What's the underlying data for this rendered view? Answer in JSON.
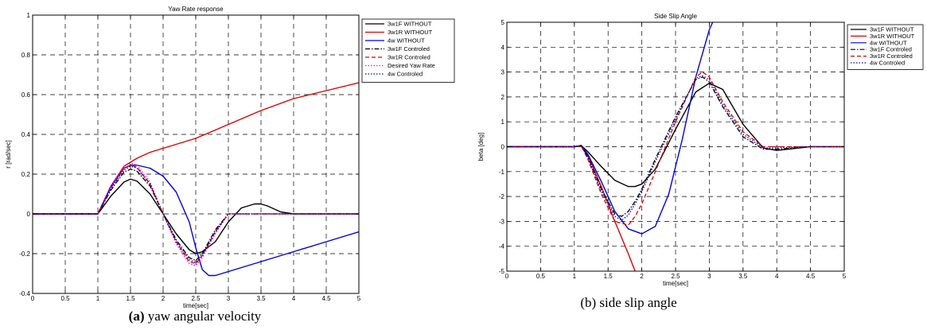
{
  "chart_data": [
    {
      "type": "line",
      "title": "Yaw Rate response",
      "xlabel": "time[sec]",
      "ylabel": "r [rad/sec]",
      "xlim": [
        0,
        5
      ],
      "ylim": [
        -0.4,
        1
      ],
      "xticks": [
        "0",
        "0.5",
        "1",
        "1.5",
        "2",
        "2.5",
        "3",
        "3.5",
        "4",
        "4.5",
        "5"
      ],
      "yticks": [
        "-0.4",
        "-0.2",
        "0",
        "0.2",
        "0.4",
        "0.6",
        "0.8",
        "1"
      ],
      "grid": true,
      "legend_position": "top-right",
      "caption_bold": "(a)",
      "caption": " yaw angular velocity",
      "series": [
        {
          "name": "3w1F WITHOUT",
          "color": "#000000",
          "dash": "solid",
          "x": [
            0,
            1,
            1.2,
            1.4,
            1.5,
            1.6,
            1.8,
            2.0,
            2.2,
            2.4,
            2.5,
            2.6,
            2.8,
            3.0,
            3.2,
            3.4,
            3.5,
            3.6,
            3.8,
            4.0,
            4.5,
            5
          ],
          "y": [
            0,
            0,
            0.09,
            0.16,
            0.175,
            0.165,
            0.1,
            0.0,
            -0.1,
            -0.18,
            -0.2,
            -0.19,
            -0.14,
            -0.04,
            0.03,
            0.05,
            0.05,
            0.04,
            0.01,
            0.0,
            0.0,
            0.0
          ]
        },
        {
          "name": "3w1R WITHOUT",
          "color": "#e00000",
          "dash": "solid",
          "x": [
            0,
            1,
            1.2,
            1.4,
            1.5,
            1.6,
            1.8,
            2.0,
            2.5,
            3.0,
            3.5,
            4.0,
            4.5,
            5
          ],
          "y": [
            0,
            0,
            0.14,
            0.24,
            0.26,
            0.28,
            0.31,
            0.33,
            0.38,
            0.45,
            0.52,
            0.58,
            0.62,
            0.66
          ]
        },
        {
          "name": "4w WITHOUT",
          "color": "#0000e0",
          "dash": "solid",
          "x": [
            0,
            1,
            1.2,
            1.4,
            1.5,
            1.6,
            1.8,
            2.0,
            2.2,
            2.4,
            2.5,
            2.6,
            2.7,
            2.8,
            3.0,
            3.5,
            4.0,
            4.5,
            5
          ],
          "y": [
            0,
            0,
            0.14,
            0.23,
            0.245,
            0.245,
            0.23,
            0.19,
            0.11,
            -0.04,
            -0.17,
            -0.28,
            -0.31,
            -0.31,
            -0.29,
            -0.24,
            -0.19,
            -0.14,
            -0.09
          ]
        },
        {
          "name": "3w1F Controled",
          "color": "#000000",
          "dash": "dashdot",
          "x": [
            0,
            1,
            1.2,
            1.4,
            1.5,
            1.6,
            1.8,
            2.0,
            2.2,
            2.4,
            2.5,
            2.6,
            2.8,
            3.0,
            3.2,
            3.5,
            4.0,
            5
          ],
          "y": [
            0,
            0,
            0.12,
            0.21,
            0.225,
            0.215,
            0.14,
            0.0,
            -0.13,
            -0.22,
            -0.235,
            -0.2,
            -0.08,
            0.0,
            0.0,
            0.0,
            0.0,
            0.0
          ]
        },
        {
          "name": "3w1R Controled",
          "color": "#e00000",
          "dash": "dashed",
          "x": [
            0,
            1,
            1.2,
            1.4,
            1.5,
            1.6,
            1.8,
            2.0,
            2.2,
            2.4,
            2.5,
            2.6,
            2.8,
            3.0,
            3.2,
            3.5,
            4.0,
            5
          ],
          "y": [
            0,
            0,
            0.13,
            0.23,
            0.245,
            0.235,
            0.15,
            0.0,
            -0.14,
            -0.24,
            -0.25,
            -0.21,
            -0.09,
            0.0,
            0.0,
            0.0,
            0.0,
            0.0
          ]
        },
        {
          "name": "Desired Yaw Rate",
          "color": "#ff00ff",
          "dash": "dotted",
          "x": [
            0,
            1,
            1.2,
            1.4,
            1.5,
            1.6,
            1.8,
            2.0,
            2.2,
            2.4,
            2.5,
            2.6,
            2.8,
            3.0,
            3.2,
            3.5,
            4.0,
            5
          ],
          "y": [
            0,
            0,
            0.14,
            0.24,
            0.255,
            0.245,
            0.16,
            0.0,
            -0.15,
            -0.25,
            -0.26,
            -0.22,
            -0.1,
            0.0,
            0.0,
            0.0,
            0.0,
            0.0
          ]
        },
        {
          "name": "4w Controled",
          "color": "#0000c0",
          "dash": "dotted",
          "x": [
            0,
            1,
            1.2,
            1.4,
            1.5,
            1.6,
            1.8,
            2.0,
            2.2,
            2.4,
            2.5,
            2.6,
            2.8,
            3.0,
            3.2,
            3.5,
            4.0,
            5
          ],
          "y": [
            0,
            0,
            0.13,
            0.22,
            0.24,
            0.23,
            0.15,
            0.0,
            -0.14,
            -0.23,
            -0.245,
            -0.21,
            -0.09,
            0.0,
            0.0,
            0.0,
            0.0,
            0.0
          ]
        }
      ]
    },
    {
      "type": "line",
      "title": "Side Slip Angle",
      "xlabel": "time[sec]",
      "ylabel": "beta [deg]",
      "xlim": [
        0,
        5
      ],
      "ylim": [
        -5,
        5
      ],
      "xticks": [
        "0",
        "0.5",
        "1",
        "1.5",
        "2",
        "2.5",
        "3",
        "3.5",
        "4",
        "4.5",
        "5"
      ],
      "yticks": [
        "-5",
        "-4",
        "-3",
        "-2",
        "-1",
        "0",
        "1",
        "2",
        "3",
        "4",
        "5"
      ],
      "grid": true,
      "legend_position": "top-right",
      "caption": "(b) side slip angle",
      "series": [
        {
          "name": "3w1F WITHOUT",
          "color": "#000000",
          "dash": "solid",
          "x": [
            0,
            1,
            1.1,
            1.2,
            1.4,
            1.6,
            1.8,
            1.9,
            2.0,
            2.2,
            2.5,
            2.8,
            3.0,
            3.2,
            3.5,
            3.8,
            4.0,
            4.5,
            5
          ],
          "y": [
            0,
            0,
            0.05,
            -0.2,
            -0.8,
            -1.35,
            -1.6,
            -1.6,
            -1.5,
            -0.9,
            0.7,
            2.2,
            2.55,
            2.3,
            0.9,
            -0.05,
            -0.15,
            0.0,
            0.0
          ]
        },
        {
          "name": "3w1R WITHOUT",
          "color": "#e00000",
          "dash": "solid",
          "x": [
            0,
            1,
            1.1,
            1.2,
            1.4,
            1.6,
            1.8,
            1.9
          ],
          "y": [
            0,
            0,
            0.03,
            -0.35,
            -1.6,
            -3.0,
            -4.3,
            -5.0
          ]
        },
        {
          "name": "4w WITHOUT",
          "color": "#0000e0",
          "dash": "solid",
          "x": [
            0,
            1,
            1.1,
            1.2,
            1.4,
            1.6,
            1.8,
            2.0,
            2.2,
            2.4,
            2.6,
            2.8,
            3.0,
            3.05
          ],
          "y": [
            0,
            0,
            0.05,
            -0.3,
            -1.4,
            -2.6,
            -3.3,
            -3.5,
            -3.2,
            -1.9,
            0.3,
            2.8,
            4.7,
            5.0
          ]
        },
        {
          "name": "3w1F Controled",
          "color": "#000000",
          "dash": "dashdot",
          "x": [
            0,
            1,
            1.1,
            1.2,
            1.4,
            1.6,
            1.7,
            1.8,
            1.9,
            2.0,
            2.2,
            2.5,
            2.8,
            2.9,
            3.0,
            3.2,
            3.5,
            3.8,
            4.0,
            4.5,
            5
          ],
          "y": [
            0,
            0,
            0.05,
            -0.4,
            -1.7,
            -2.7,
            -2.8,
            -2.6,
            -2.2,
            -1.7,
            -0.5,
            1.2,
            2.7,
            2.8,
            2.6,
            1.6,
            0.4,
            -0.1,
            -0.1,
            0.0,
            0.0
          ]
        },
        {
          "name": "3w1R Controled",
          "color": "#e00000",
          "dash": "dashed",
          "x": [
            0,
            1,
            1.1,
            1.2,
            1.4,
            1.6,
            1.8,
            1.9,
            2.0,
            2.2,
            2.5,
            2.8,
            2.9,
            3.0,
            3.2,
            3.5,
            3.8,
            4.0,
            4.5,
            5
          ],
          "y": [
            0,
            0,
            0.05,
            -0.5,
            -1.9,
            -3.0,
            -3.15,
            -2.8,
            -2.3,
            -1.0,
            1.0,
            2.8,
            3.0,
            2.8,
            1.8,
            0.6,
            0.0,
            0.0,
            0.0,
            0.0
          ]
        },
        {
          "name": "4w Controled",
          "color": "#0000c0",
          "dash": "dotted",
          "x": [
            0,
            1,
            1.1,
            1.2,
            1.4,
            1.6,
            1.7,
            1.8,
            1.9,
            2.0,
            2.2,
            2.5,
            2.8,
            2.9,
            3.0,
            3.2,
            3.5,
            3.8,
            4.0,
            4.5,
            5
          ],
          "y": [
            0,
            0,
            0.05,
            -0.45,
            -1.8,
            -2.8,
            -2.95,
            -2.75,
            -2.3,
            -1.8,
            -0.6,
            1.1,
            2.75,
            2.85,
            2.7,
            1.7,
            0.5,
            -0.05,
            -0.05,
            0.0,
            0.0
          ]
        }
      ]
    }
  ]
}
